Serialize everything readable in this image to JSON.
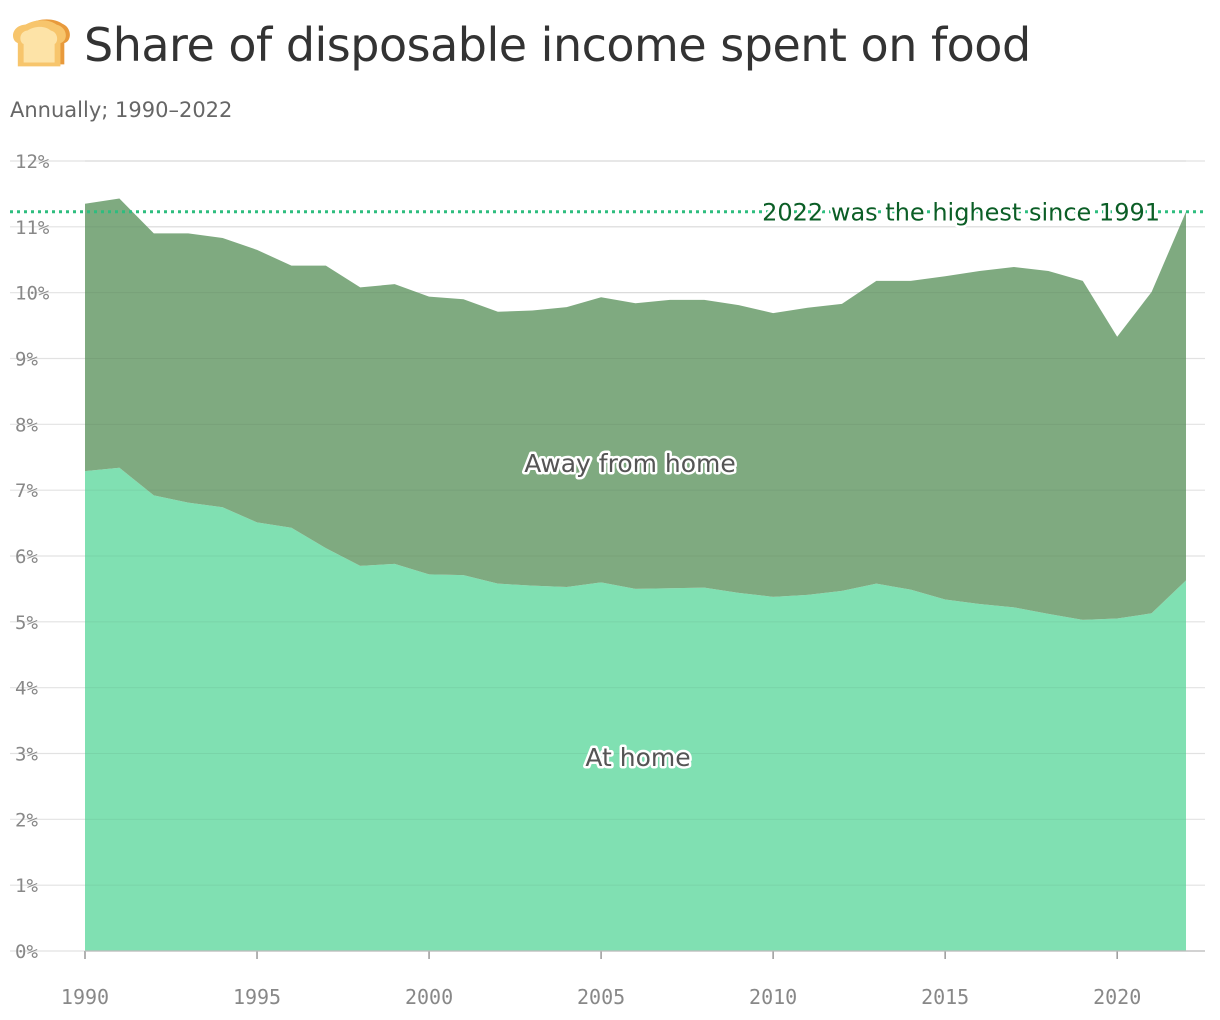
{
  "header": {
    "icon": "bread-icon",
    "title": "Share of disposable income spent on food",
    "subtitle": "Annually; 1990–2022"
  },
  "colors": {
    "at_home": "#80e0b2",
    "away_from_home": "#7faa80",
    "reference_line": "#2ebd7f",
    "annotation_text": "#0b5e26",
    "grid": "#e2e2e2",
    "axis_text": "#888888"
  },
  "chart_data": {
    "type": "area",
    "stacked": true,
    "title": "Share of disposable income spent on food",
    "subtitle": "Annually; 1990–2022",
    "x": [
      1990,
      1991,
      1992,
      1993,
      1994,
      1995,
      1996,
      1997,
      1998,
      1999,
      2000,
      2001,
      2002,
      2003,
      2004,
      2005,
      2006,
      2007,
      2008,
      2009,
      2010,
      2011,
      2012,
      2013,
      2014,
      2015,
      2016,
      2017,
      2018,
      2019,
      2020,
      2021,
      2022
    ],
    "series": [
      {
        "name": "At home",
        "values": [
          7.29,
          7.34,
          6.92,
          6.81,
          6.74,
          6.51,
          6.43,
          6.12,
          5.85,
          5.88,
          5.72,
          5.71,
          5.58,
          5.55,
          5.53,
          5.6,
          5.5,
          5.51,
          5.52,
          5.44,
          5.38,
          5.41,
          5.47,
          5.58,
          5.49,
          5.34,
          5.27,
          5.22,
          5.12,
          5.03,
          5.05,
          5.13,
          5.63
        ]
      },
      {
        "name": "Away from home",
        "values": [
          4.06,
          4.09,
          3.98,
          4.09,
          4.09,
          4.14,
          3.98,
          4.29,
          4.23,
          4.25,
          4.22,
          4.19,
          4.13,
          4.18,
          4.25,
          4.33,
          4.34,
          4.38,
          4.37,
          4.37,
          4.31,
          4.36,
          4.36,
          4.6,
          4.69,
          4.91,
          5.06,
          5.17,
          5.21,
          5.15,
          4.28,
          4.88,
          5.6
        ]
      }
    ],
    "reference_line": {
      "y": 11.23,
      "label": "2022 was the highest since 1991"
    },
    "ylim": [
      0,
      12
    ],
    "yticks": [
      "0%",
      "1%",
      "2%",
      "3%",
      "4%",
      "5%",
      "6%",
      "7%",
      "8%",
      "9%",
      "10%",
      "11%",
      "12%"
    ],
    "xticks": [
      "1990",
      "1995",
      "2000",
      "2005",
      "2010",
      "2015",
      "2020"
    ],
    "grid": true,
    "legend": "inline-labels"
  }
}
